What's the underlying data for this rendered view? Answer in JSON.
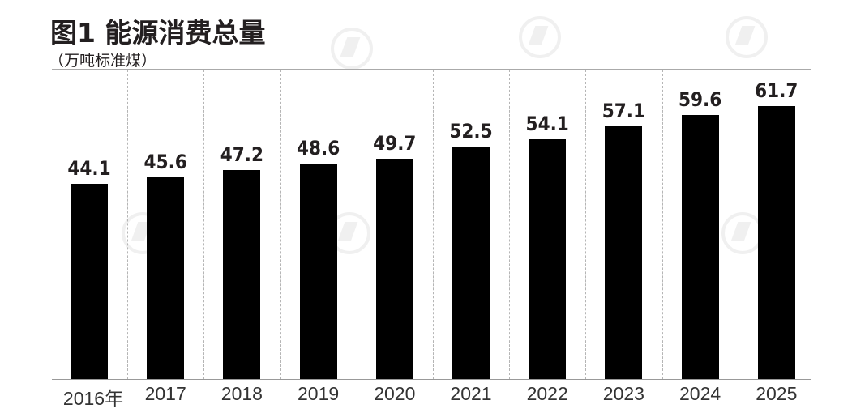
{
  "chart_data": {
    "type": "bar",
    "title": "图1 能源消费总量",
    "subtitle": "（万吨标准煤）",
    "xlabel": "",
    "ylabel": "万吨标准煤",
    "categories": [
      "2016年",
      "2017",
      "2018",
      "2019",
      "2020",
      "2021",
      "2022",
      "2023",
      "2024",
      "2025"
    ],
    "values": [
      44.1,
      45.6,
      47.2,
      48.6,
      49.7,
      52.5,
      54.1,
      57.1,
      59.6,
      61.7
    ],
    "value_labels": [
      "44.1",
      "45.6",
      "47.2",
      "48.6",
      "49.7",
      "52.5",
      "54.1",
      "57.1",
      "59.6",
      "61.7"
    ],
    "ylim": [
      0,
      70
    ],
    "grid": "vertical dashed separators between categories",
    "legend": "none",
    "bar_color": "#000000"
  },
  "header": {
    "title": "图1 能源消费总量",
    "unit": "（万吨标准煤）"
  }
}
